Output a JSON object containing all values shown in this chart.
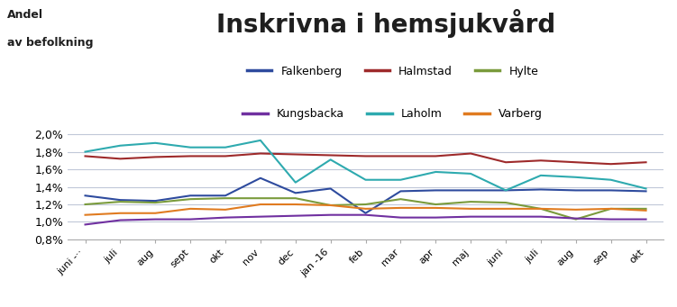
{
  "title": "Inskrivna i hemsjukvård",
  "ylabel_line1": "Andel",
  "ylabel_line2": "av befolkning",
  "x_labels": [
    "juni -··",
    "juli",
    "aug",
    "sept",
    "okt",
    "nov",
    "dec",
    "jan -16",
    "feb",
    "mar",
    "apr",
    "maj",
    "juni",
    "juli",
    "aug",
    "sep",
    "okt"
  ],
  "series": {
    "Falkenberg": {
      "color": "#2E4B9E",
      "values": [
        0.013,
        0.0125,
        0.0124,
        0.013,
        0.013,
        0.015,
        0.0133,
        0.0138,
        0.011,
        0.0135,
        0.0136,
        0.0136,
        0.0136,
        0.0137,
        0.0136,
        0.0136,
        0.0135
      ]
    },
    "Halmstad": {
      "color": "#9E2A2B",
      "values": [
        0.0175,
        0.0172,
        0.0174,
        0.0175,
        0.0175,
        0.0178,
        0.0177,
        0.0176,
        0.0175,
        0.0175,
        0.0175,
        0.0178,
        0.0168,
        0.017,
        0.0168,
        0.0166,
        0.0168
      ]
    },
    "Hylte": {
      "color": "#7A9B3C",
      "values": [
        0.012,
        0.0123,
        0.0122,
        0.0126,
        0.0127,
        0.0127,
        0.0127,
        0.0119,
        0.012,
        0.0126,
        0.012,
        0.0123,
        0.0122,
        0.0115,
        0.0103,
        0.0115,
        0.0115
      ]
    },
    "Kungsbacka": {
      "color": "#7030A0",
      "values": [
        0.0097,
        0.0102,
        0.0103,
        0.0103,
        0.0105,
        0.0106,
        0.0107,
        0.0108,
        0.0108,
        0.0105,
        0.0105,
        0.0106,
        0.0106,
        0.0106,
        0.0104,
        0.0103,
        0.0103
      ]
    },
    "Laholm": {
      "color": "#2EAAAF",
      "values": [
        0.018,
        0.0187,
        0.019,
        0.0185,
        0.0185,
        0.0193,
        0.0145,
        0.0171,
        0.0148,
        0.0148,
        0.0157,
        0.0155,
        0.0136,
        0.0153,
        0.0151,
        0.0148,
        0.0138
      ]
    },
    "Varberg": {
      "color": "#E07B20",
      "values": [
        0.0108,
        0.011,
        0.011,
        0.0115,
        0.0114,
        0.012,
        0.012,
        0.0119,
        0.0115,
        0.0116,
        0.0116,
        0.0115,
        0.0115,
        0.0115,
        0.0114,
        0.0115,
        0.0113
      ]
    }
  },
  "ylim": [
    0.008,
    0.022
  ],
  "yticks": [
    0.008,
    0.01,
    0.012,
    0.014,
    0.016,
    0.018,
    0.02
  ],
  "ytick_labels": [
    "0,8%",
    "1,0%",
    "1,2%",
    "1,4%",
    "1,6%",
    "1,8%",
    "2,0%"
  ],
  "background_color": "#FFFFFF",
  "grid_color": "#C0C8D8",
  "legend_row1": [
    "Falkenberg",
    "Halmstad",
    "Hylte"
  ],
  "legend_row2": [
    "Kungsbacka",
    "Laholm",
    "Varberg"
  ],
  "title_fontsize": 20,
  "title_color": "#1F1F1F"
}
